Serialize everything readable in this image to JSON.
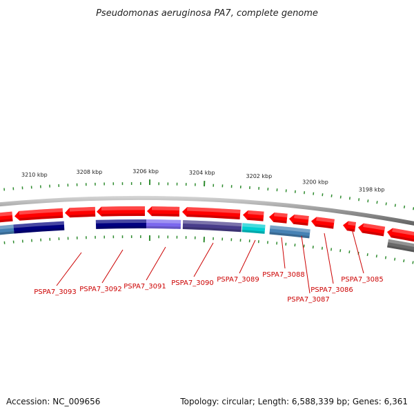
{
  "title": "Pseudomonas aeruginosa PA7, complete genome",
  "footer": {
    "accession": "Accession: NC_009656",
    "topology": "Topology: circular; Length: 6,588,339 bp; Genes: 6,361"
  },
  "colors": {
    "backbone": "#808080",
    "tick": "#2e8b2e",
    "label": "#cc0000",
    "red_gene": "#ff0000",
    "navy_gene": "#000080",
    "purple_gene": "#7b68ee",
    "darkslate_gene": "#483d8b",
    "cyan_gene": "#00ced1",
    "steelblue_gene": "#4682b4",
    "gray_gene": "#696969"
  },
  "scale_labels": [
    "3210 kbp",
    "3208 kbp",
    "3206 kbp",
    "3204 kbp",
    "3202 kbp",
    "3200 kbp",
    "3198 kbp"
  ],
  "gene_labels": [
    "PSPA7_3093",
    "PSPA7_3092",
    "PSPA7_3091",
    "PSPA7_3090",
    "PSPA7_3089",
    "PSPA7_3088",
    "PSPA7_3087",
    "PSPA7_3086",
    "PSPA7_3085"
  ]
}
